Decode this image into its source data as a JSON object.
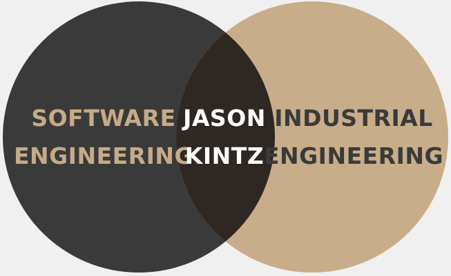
{
  "background_color": "#f1f0f0",
  "diagram": {
    "left_set": {
      "label_line1": "SOFTWARE",
      "label_line2": "ENGINEERING",
      "fill_color": "#3a3a3a",
      "text_color": "#c6ab88"
    },
    "right_set": {
      "label_line1": "INDUSTRIAL",
      "label_line2": "ENGINEERING",
      "fill_color": "#c8ad8a",
      "text_color": "#3a3a3a"
    },
    "intersection": {
      "label_line1": "JASON",
      "label_line2": "KINTZ",
      "fill_color": "#2f2721",
      "text_color": "#ffffff"
    }
  }
}
